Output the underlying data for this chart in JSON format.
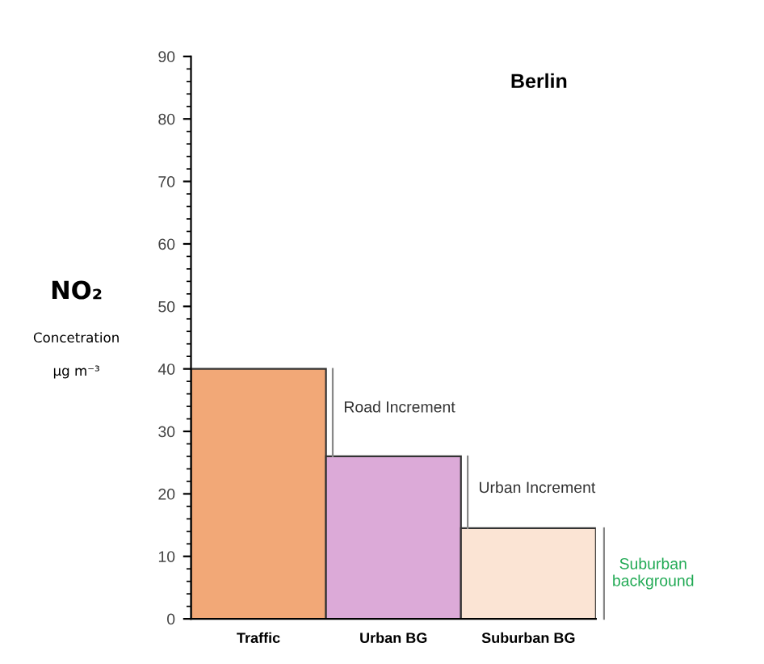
{
  "chart_data": {
    "type": "bar",
    "title": "Berlin",
    "ylabel": "NO₂\nConcetration\nµg m⁻³",
    "categories": [
      "Traffic",
      "Urban BG",
      "Suburban BG"
    ],
    "colors": [
      "#f2a877",
      "#dcaad8",
      "#fbe4d4"
    ],
    "values": [
      40,
      26,
      14.5
    ],
    "ylim": [
      0,
      90
    ],
    "yticks": [
      0,
      10,
      20,
      30,
      40,
      50,
      60,
      70,
      80,
      90
    ],
    "grid": false,
    "annotations": [
      "Road Increment",
      "Urban Increment",
      "Suburban\nbackground"
    ]
  }
}
